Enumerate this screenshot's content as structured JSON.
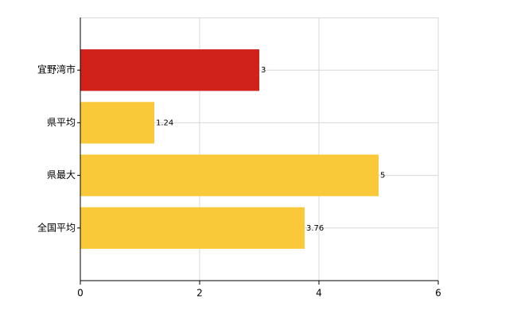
{
  "chart_data": {
    "type": "hbar",
    "categories": [
      "宜野湾市",
      "県平均",
      "県最大",
      "全国平均"
    ],
    "values": [
      3,
      1.24,
      5,
      3.76
    ],
    "colors": [
      "#d0221a",
      "#f9c93a",
      "#f9c93a",
      "#f9c93a"
    ],
    "xlim": [
      0,
      6
    ],
    "xticks": [
      0,
      2,
      4,
      6
    ],
    "grid": true
  }
}
